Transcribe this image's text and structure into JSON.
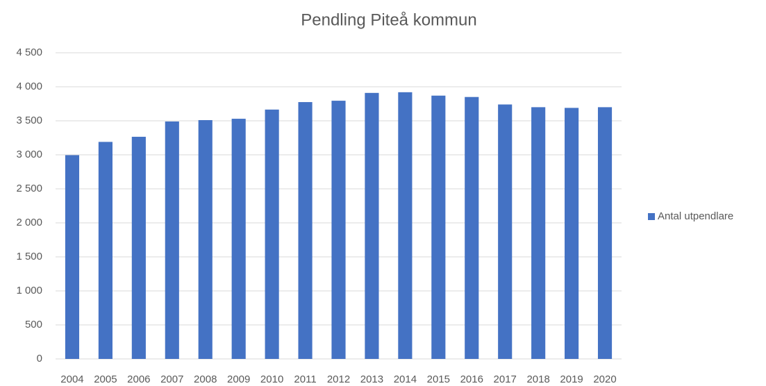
{
  "chart_data": {
    "type": "bar",
    "title": "Pendling Piteå kommun",
    "categories": [
      "2004",
      "2005",
      "2006",
      "2007",
      "2008",
      "2009",
      "2010",
      "2011",
      "2012",
      "2013",
      "2014",
      "2015",
      "2016",
      "2017",
      "2018",
      "2019",
      "2020"
    ],
    "series": [
      {
        "name": "Antal utpendlare",
        "color": "#4472c4",
        "values": [
          2995,
          3190,
          3265,
          3490,
          3510,
          3530,
          3665,
          3775,
          3795,
          3910,
          3920,
          3870,
          3850,
          3740,
          3700,
          3690,
          3700
        ]
      }
    ],
    "ylim": [
      0,
      4500
    ],
    "yticks": [
      0,
      500,
      {
        "value": 1000,
        "label": "1 000"
      },
      {
        "value": 1500,
        "label": "1 500"
      },
      {
        "value": 2000,
        "label": "2 000"
      },
      {
        "value": 2500,
        "label": "2 500"
      },
      {
        "value": 3000,
        "label": "3 000"
      },
      {
        "value": 3500,
        "label": "3 500"
      },
      {
        "value": 4000,
        "label": "4 000"
      },
      {
        "value": 4500,
        "label": "4 500"
      }
    ],
    "grid": true,
    "legend": "right"
  }
}
